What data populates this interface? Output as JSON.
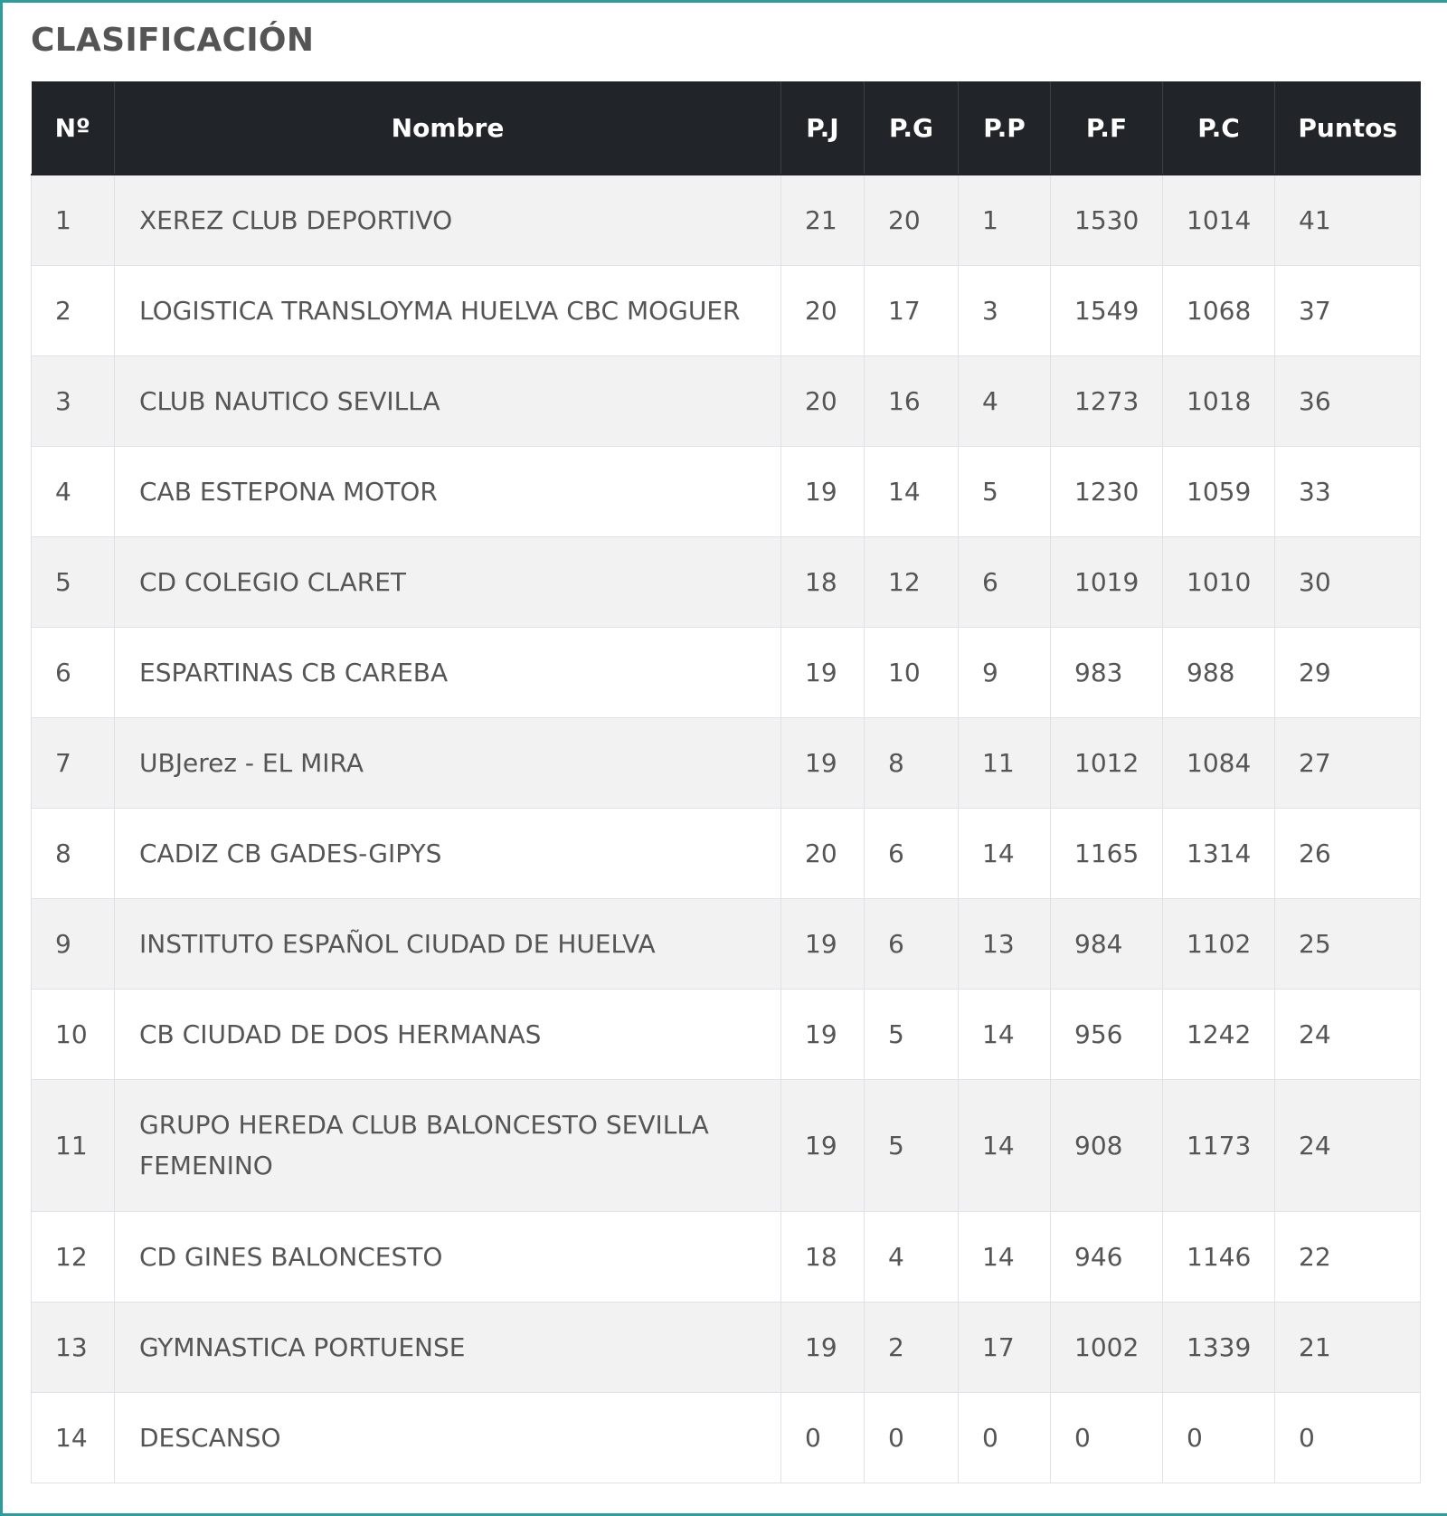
{
  "title": "CLASIFICACIÓN",
  "columns": [
    "Nº",
    "Nombre",
    "P.J",
    "P.G",
    "P.P",
    "P.F",
    "P.C",
    "Puntos"
  ],
  "rows": [
    {
      "no": "1",
      "name": "XEREZ CLUB DEPORTIVO",
      "pj": "21",
      "pg": "20",
      "pp": "1",
      "pf": "1530",
      "pc": "1014",
      "pts": "41"
    },
    {
      "no": "2",
      "name": "LOGISTICA TRANSLOYMA HUELVA CBC MOGUER",
      "pj": "20",
      "pg": "17",
      "pp": "3",
      "pf": "1549",
      "pc": "1068",
      "pts": "37"
    },
    {
      "no": "3",
      "name": "CLUB NAUTICO SEVILLA",
      "pj": "20",
      "pg": "16",
      "pp": "4",
      "pf": "1273",
      "pc": "1018",
      "pts": "36"
    },
    {
      "no": "4",
      "name": "CAB ESTEPONA MOTOR",
      "pj": "19",
      "pg": "14",
      "pp": "5",
      "pf": "1230",
      "pc": "1059",
      "pts": "33"
    },
    {
      "no": "5",
      "name": "CD COLEGIO CLARET",
      "pj": "18",
      "pg": "12",
      "pp": "6",
      "pf": "1019",
      "pc": "1010",
      "pts": "30"
    },
    {
      "no": "6",
      "name": "ESPARTINAS CB CAREBA",
      "pj": "19",
      "pg": "10",
      "pp": "9",
      "pf": "983",
      "pc": "988",
      "pts": "29"
    },
    {
      "no": "7",
      "name": "UBJerez - EL MIRA",
      "pj": "19",
      "pg": "8",
      "pp": "11",
      "pf": "1012",
      "pc": "1084",
      "pts": "27"
    },
    {
      "no": "8",
      "name": "CADIZ CB GADES-GIPYS",
      "pj": "20",
      "pg": "6",
      "pp": "14",
      "pf": "1165",
      "pc": "1314",
      "pts": "26"
    },
    {
      "no": "9",
      "name": "INSTITUTO ESPAÑOL CIUDAD DE HUELVA",
      "pj": "19",
      "pg": "6",
      "pp": "13",
      "pf": "984",
      "pc": "1102",
      "pts": "25"
    },
    {
      "no": "10",
      "name": "CB CIUDAD DE DOS HERMANAS",
      "pj": "19",
      "pg": "5",
      "pp": "14",
      "pf": "956",
      "pc": "1242",
      "pts": "24"
    },
    {
      "no": "11",
      "name": "GRUPO HEREDA CLUB BALONCESTO SEVILLA FEMENINO",
      "pj": "19",
      "pg": "5",
      "pp": "14",
      "pf": "908",
      "pc": "1173",
      "pts": "24"
    },
    {
      "no": "12",
      "name": "CD GINES BALONCESTO",
      "pj": "18",
      "pg": "4",
      "pp": "14",
      "pf": "946",
      "pc": "1146",
      "pts": "22"
    },
    {
      "no": "13",
      "name": "GYMNASTICA PORTUENSE",
      "pj": "19",
      "pg": "2",
      "pp": "17",
      "pf": "1002",
      "pc": "1339",
      "pts": "21"
    },
    {
      "no": "14",
      "name": "DESCANSO",
      "pj": "0",
      "pg": "0",
      "pp": "0",
      "pf": "0",
      "pc": "0",
      "pts": "0"
    }
  ],
  "colors": {
    "header_bg": "#212529",
    "header_text": "#ffffff",
    "stripe": "#f2f2f2",
    "text": "#555555",
    "frame_accent": "#2a9d9c"
  }
}
